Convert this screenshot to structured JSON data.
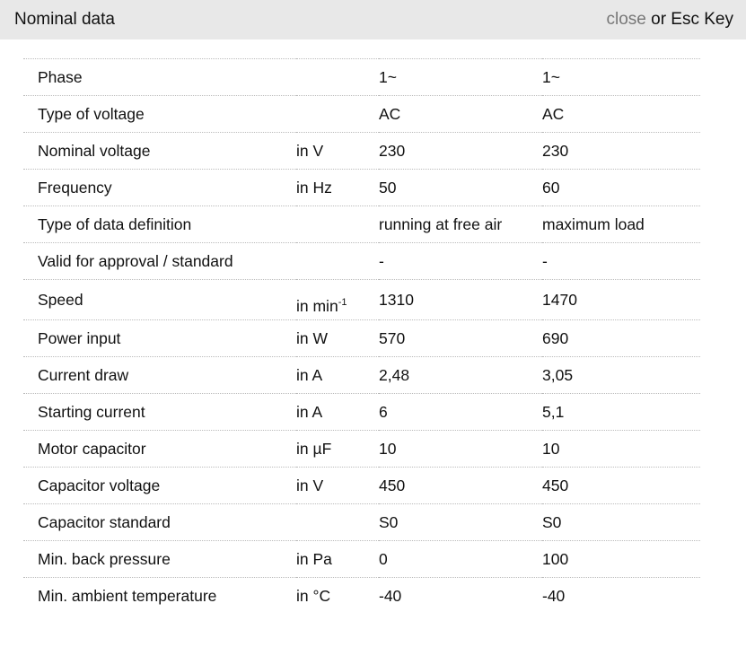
{
  "header": {
    "title": "Nominal data",
    "close_link": "close",
    "close_suffix": " or Esc Key"
  },
  "rows": [
    {
      "label": "Phase",
      "unit": "",
      "v1": "1~",
      "v2": "1~"
    },
    {
      "label": "Type of voltage",
      "unit": "",
      "v1": "AC",
      "v2": "AC"
    },
    {
      "label": "Nominal voltage",
      "unit": "in V",
      "v1": "230",
      "v2": "230"
    },
    {
      "label": "Frequency",
      "unit": "in Hz",
      "v1": "50",
      "v2": "60"
    },
    {
      "label": "Type of data definition",
      "unit": "",
      "v1": "running at free air",
      "v2": "maximum load"
    },
    {
      "label": "Valid for approval / standard",
      "unit": "",
      "v1": "-",
      "v2": "-"
    },
    {
      "label": "Speed",
      "unit": "in min",
      "unit_sup": "-1",
      "v1": "1310",
      "v2": "1470"
    },
    {
      "label": "Power input",
      "unit": "in W",
      "v1": "570",
      "v2": "690"
    },
    {
      "label": "Current draw",
      "unit": "in A",
      "v1": "2,48",
      "v2": "3,05"
    },
    {
      "label": "Starting current",
      "unit": "in A",
      "v1": "6",
      "v2": "5,1"
    },
    {
      "label": "Motor capacitor",
      "unit": "in µF",
      "v1": "10",
      "v2": "10"
    },
    {
      "label": "Capacitor voltage",
      "unit": "in V",
      "v1": "450",
      "v2": "450"
    },
    {
      "label": "Capacitor standard",
      "unit": "",
      "v1": "S0",
      "v2": "S0"
    },
    {
      "label": "Min. back pressure",
      "unit": "in Pa",
      "v1": "0",
      "v2": "100"
    },
    {
      "label": "Min. ambient temperature",
      "unit": "in °C",
      "v1": "-40",
      "v2": "-40"
    }
  ]
}
